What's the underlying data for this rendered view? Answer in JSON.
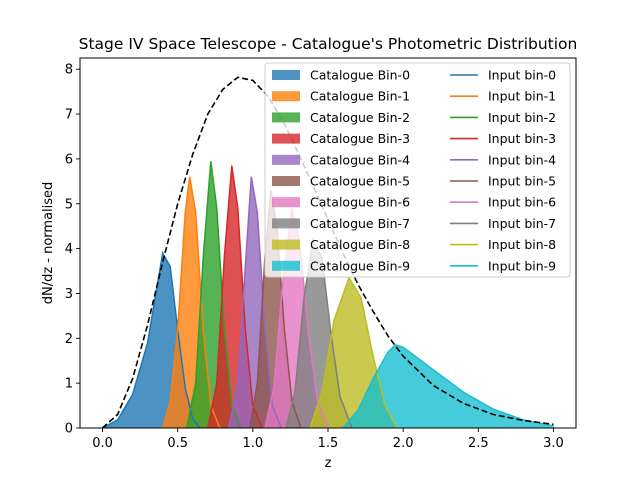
{
  "chart_data": {
    "type": "area",
    "title": "Stage IV Space Telescope - Catalogue's Photometric Distribution",
    "xlabel": "z",
    "ylabel": "dN/dz - normalised",
    "xlim": [
      -0.15,
      3.15
    ],
    "ylim": [
      0,
      8.25
    ],
    "xticks": [
      "0.0",
      "0.5",
      "1.0",
      "1.5",
      "2.0",
      "2.5",
      "3.0"
    ],
    "yticks": [
      "0",
      "1",
      "2",
      "3",
      "4",
      "5",
      "6",
      "7",
      "8"
    ],
    "grid": false,
    "legend_position": "top-right",
    "total_curve": {
      "style": "dashed",
      "color": "#000000",
      "points": [
        [
          0.0,
          0.0
        ],
        [
          0.1,
          0.3
        ],
        [
          0.2,
          1.1
        ],
        [
          0.3,
          2.3
        ],
        [
          0.4,
          3.7
        ],
        [
          0.5,
          5.0
        ],
        [
          0.6,
          6.1
        ],
        [
          0.7,
          7.0
        ],
        [
          0.8,
          7.55
        ],
        [
          0.9,
          7.82
        ],
        [
          1.0,
          7.75
        ],
        [
          1.1,
          7.4
        ],
        [
          1.2,
          6.85
        ],
        [
          1.3,
          6.15
        ],
        [
          1.4,
          5.4
        ],
        [
          1.5,
          4.65
        ],
        [
          1.6,
          3.9
        ],
        [
          1.7,
          3.2
        ],
        [
          1.8,
          2.6
        ],
        [
          1.9,
          2.05
        ],
        [
          2.0,
          1.6
        ],
        [
          2.2,
          0.95
        ],
        [
          2.4,
          0.55
        ],
        [
          2.6,
          0.3
        ],
        [
          2.8,
          0.17
        ],
        [
          3.0,
          0.08
        ]
      ]
    },
    "series": [
      {
        "name": "Catalogue Bin-0",
        "input_name": "Input bin-0",
        "color": "#1f77b4",
        "points": [
          [
            0.0,
            0.0
          ],
          [
            0.1,
            0.18
          ],
          [
            0.2,
            0.75
          ],
          [
            0.3,
            1.9
          ],
          [
            0.4,
            3.9
          ],
          [
            0.45,
            3.6
          ],
          [
            0.5,
            2.2
          ],
          [
            0.55,
            0.9
          ],
          [
            0.6,
            0.2
          ],
          [
            0.65,
            0.0
          ]
        ]
      },
      {
        "name": "Catalogue Bin-1",
        "input_name": "Input bin-1",
        "color": "#ff7f0e",
        "points": [
          [
            0.4,
            0.0
          ],
          [
            0.45,
            0.6
          ],
          [
            0.5,
            2.2
          ],
          [
            0.55,
            4.8
          ],
          [
            0.58,
            5.6
          ],
          [
            0.62,
            4.8
          ],
          [
            0.67,
            2.2
          ],
          [
            0.72,
            0.5
          ],
          [
            0.78,
            0.0
          ]
        ]
      },
      {
        "name": "Catalogue Bin-2",
        "input_name": "Input bin-2",
        "color": "#2ca02c",
        "points": [
          [
            0.56,
            0.0
          ],
          [
            0.62,
            1.0
          ],
          [
            0.67,
            3.8
          ],
          [
            0.72,
            5.95
          ],
          [
            0.76,
            4.9
          ],
          [
            0.81,
            2.2
          ],
          [
            0.86,
            0.5
          ],
          [
            0.92,
            0.0
          ]
        ]
      },
      {
        "name": "Catalogue Bin-3",
        "input_name": "Input bin-3",
        "color": "#d62728",
        "points": [
          [
            0.7,
            0.0
          ],
          [
            0.76,
            1.0
          ],
          [
            0.81,
            3.8
          ],
          [
            0.86,
            5.85
          ],
          [
            0.9,
            4.9
          ],
          [
            0.95,
            2.2
          ],
          [
            1.0,
            0.5
          ],
          [
            1.06,
            0.0
          ]
        ]
      },
      {
        "name": "Catalogue Bin-4",
        "input_name": "Input bin-4",
        "color": "#9467bd",
        "points": [
          [
            0.84,
            0.0
          ],
          [
            0.9,
            1.0
          ],
          [
            0.95,
            3.6
          ],
          [
            0.99,
            5.6
          ],
          [
            1.03,
            4.8
          ],
          [
            1.08,
            2.2
          ],
          [
            1.13,
            0.5
          ],
          [
            1.19,
            0.0
          ]
        ]
      },
      {
        "name": "Catalogue Bin-5",
        "input_name": "Input bin-5",
        "color": "#8c564b",
        "points": [
          [
            0.98,
            0.0
          ],
          [
            1.03,
            1.0
          ],
          [
            1.08,
            3.8
          ],
          [
            1.12,
            5.3
          ],
          [
            1.16,
            4.5
          ],
          [
            1.21,
            2.2
          ],
          [
            1.26,
            0.6
          ],
          [
            1.32,
            0.0
          ]
        ]
      },
      {
        "name": "Catalogue Bin-6",
        "input_name": "Input bin-6",
        "color": "#e377c2",
        "points": [
          [
            1.08,
            0.0
          ],
          [
            1.14,
            0.9
          ],
          [
            1.2,
            3.3
          ],
          [
            1.26,
            4.9
          ],
          [
            1.31,
            4.2
          ],
          [
            1.37,
            2.1
          ],
          [
            1.43,
            0.6
          ],
          [
            1.5,
            0.0
          ]
        ]
      },
      {
        "name": "Catalogue Bin-7",
        "input_name": "Input bin-7",
        "color": "#7f7f7f",
        "points": [
          [
            1.22,
            0.0
          ],
          [
            1.28,
            0.8
          ],
          [
            1.34,
            2.9
          ],
          [
            1.4,
            4.2
          ],
          [
            1.46,
            3.8
          ],
          [
            1.52,
            2.1
          ],
          [
            1.58,
            0.7
          ],
          [
            1.66,
            0.0
          ]
        ]
      },
      {
        "name": "Catalogue Bin-8",
        "input_name": "Input bin-8",
        "color": "#bcbd22",
        "points": [
          [
            1.38,
            0.0
          ],
          [
            1.46,
            0.8
          ],
          [
            1.54,
            2.4
          ],
          [
            1.64,
            3.35
          ],
          [
            1.72,
            2.9
          ],
          [
            1.8,
            1.6
          ],
          [
            1.88,
            0.5
          ],
          [
            1.96,
            0.0
          ]
        ]
      },
      {
        "name": "Catalogue Bin-9",
        "input_name": "Input bin-9",
        "color": "#17becf",
        "points": [
          [
            1.6,
            0.0
          ],
          [
            1.7,
            0.4
          ],
          [
            1.8,
            1.1
          ],
          [
            1.9,
            1.7
          ],
          [
            1.95,
            1.85
          ],
          [
            2.0,
            1.8
          ],
          [
            2.2,
            1.3
          ],
          [
            2.4,
            0.8
          ],
          [
            2.6,
            0.42
          ],
          [
            2.8,
            0.18
          ],
          [
            3.0,
            0.05
          ]
        ]
      }
    ]
  }
}
